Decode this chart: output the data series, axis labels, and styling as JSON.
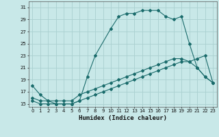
{
  "xlabel": "Humidex (Indice chaleur)",
  "bg_color": "#c8e8e8",
  "grid_color": "#aad0d0",
  "line_color": "#1a6b6b",
  "xlim": [
    -0.5,
    23.5
  ],
  "ylim": [
    14.5,
    32.0
  ],
  "xticks": [
    0,
    1,
    2,
    3,
    4,
    5,
    6,
    7,
    8,
    9,
    10,
    11,
    12,
    13,
    14,
    15,
    16,
    17,
    18,
    19,
    20,
    21,
    22,
    23
  ],
  "yticks": [
    15,
    17,
    19,
    21,
    23,
    25,
    27,
    29,
    31
  ],
  "line1_x": [
    0,
    1,
    2,
    3,
    4,
    5,
    6,
    7,
    8,
    10,
    11,
    12,
    13,
    14,
    15,
    16,
    17,
    18,
    19,
    20,
    21,
    22,
    23
  ],
  "line1_y": [
    18,
    16.5,
    15.5,
    15,
    15,
    15,
    15.5,
    19.5,
    23,
    27.5,
    29.5,
    30,
    30,
    30.5,
    30.5,
    30.5,
    29.5,
    29,
    29.5,
    25,
    21,
    19.5,
    18.5
  ],
  "line2_x": [
    0,
    1,
    2,
    3,
    4,
    5,
    6,
    7,
    8,
    9,
    10,
    11,
    12,
    13,
    14,
    15,
    16,
    17,
    18,
    19,
    20,
    21,
    22,
    23
  ],
  "line2_y": [
    16,
    15.5,
    15.5,
    15.5,
    15.5,
    15.5,
    16.5,
    17,
    17.5,
    18,
    18.5,
    19,
    19.5,
    20,
    20.5,
    21,
    21.5,
    22,
    22.5,
    22.5,
    22,
    21,
    19.5,
    18.5
  ],
  "line3_x": [
    0,
    1,
    2,
    3,
    4,
    5,
    6,
    7,
    8,
    9,
    10,
    11,
    12,
    13,
    14,
    15,
    16,
    17,
    18,
    19,
    20,
    21,
    22,
    23
  ],
  "line3_y": [
    15.5,
    15,
    15,
    15,
    15,
    15,
    15.5,
    16,
    16.5,
    17,
    17.5,
    18,
    18.5,
    19,
    19.5,
    20,
    20.5,
    21,
    21.5,
    22,
    22,
    22.5,
    23,
    18.5
  ]
}
